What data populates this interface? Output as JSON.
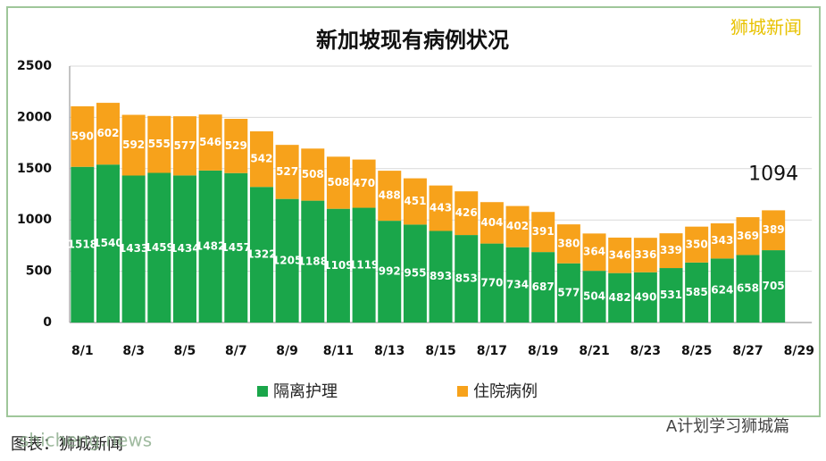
{
  "chart_data": {
    "type": "stacked-bar",
    "title": "新加坡现有病例状况",
    "categories": [
      "8/1",
      null,
      "8/3",
      null,
      "8/5",
      null,
      "8/7",
      null,
      "8/9",
      null,
      "8/11",
      null,
      "8/13",
      null,
      "8/15",
      null,
      "8/17",
      null,
      "8/19",
      null,
      "8/21",
      null,
      "8/23",
      null,
      "8/25",
      null,
      "8/27",
      null,
      "8/29"
    ],
    "series": [
      {
        "name": "隔离护理",
        "color": "#1aa64a",
        "values": [
          1518,
          1540,
          1433,
          1459,
          1434,
          1482,
          1457,
          1322,
          1205,
          1188,
          1109,
          1119,
          992,
          955,
          893,
          853,
          770,
          734,
          687,
          577,
          504,
          482,
          490,
          531,
          585,
          624,
          658,
          705,
          null
        ]
      },
      {
        "name": "住院病例",
        "color": "#f7a21b",
        "values": [
          590,
          602,
          592,
          555,
          577,
          546,
          529,
          542,
          527,
          508,
          508,
          470,
          488,
          451,
          443,
          426,
          404,
          402,
          391,
          380,
          364,
          346,
          336,
          339,
          350,
          343,
          369,
          389,
          null
        ]
      }
    ],
    "annotations": [
      "1094"
    ],
    "ylim": [
      0,
      2500
    ],
    "yticks": [
      0,
      500,
      1000,
      1500,
      2000,
      2500
    ],
    "grid": true,
    "legend": "bottom"
  },
  "credits": [
    "狮城新闻",
    "A计划学习狮城篇",
    "图表：狮城新闻",
    "shicheng.news"
  ]
}
